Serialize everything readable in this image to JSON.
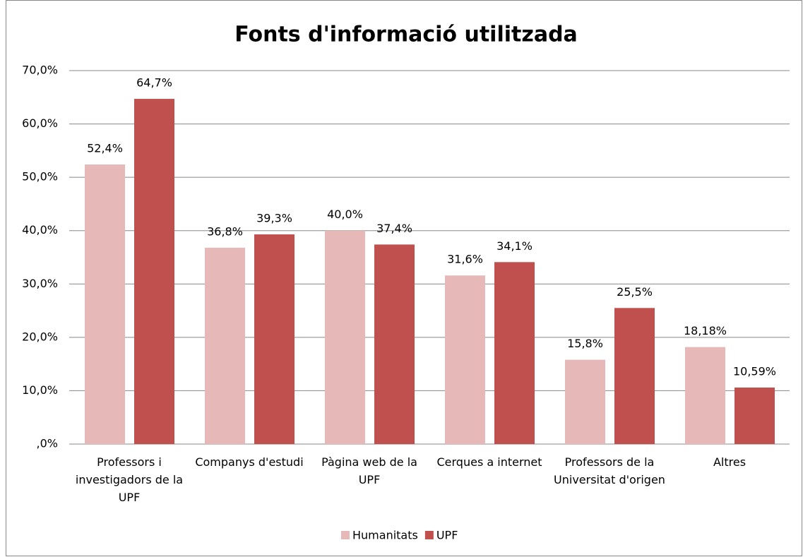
{
  "chart_data": {
    "type": "bar",
    "title": "Fonts d'informació utilitzada",
    "categories": [
      "Professors i investigadors de la UPF",
      "Companys d'estudi",
      "Pàgina web de la UPF",
      "Cerques a internet",
      "Professors de la Universitat d'origen",
      "Altres"
    ],
    "series": [
      {
        "name": "Humanitats",
        "color": "#e6b9b8",
        "values": [
          52.4,
          36.8,
          40.0,
          31.6,
          15.8,
          18.18
        ],
        "value_labels": [
          "52,4%",
          "36,8%",
          "40,0%",
          "31,6%",
          "15,8%",
          "18,18%"
        ]
      },
      {
        "name": "UPF",
        "color": "#c0504d",
        "values": [
          64.7,
          39.3,
          37.4,
          34.1,
          25.5,
          10.59
        ],
        "value_labels": [
          "64,7%",
          "39,3%",
          "37,4%",
          "34,1%",
          "25,5%",
          "10,59%"
        ]
      }
    ],
    "ylim": [
      0,
      70
    ],
    "yticks": [
      {
        "value": 0,
        "label": ",0%"
      },
      {
        "value": 10,
        "label": "10,0%"
      },
      {
        "value": 20,
        "label": "20,0%"
      },
      {
        "value": 30,
        "label": "30,0%"
      },
      {
        "value": 40,
        "label": "40,0%"
      },
      {
        "value": 50,
        "label": "50,0%"
      },
      {
        "value": 60,
        "label": "60,0%"
      },
      {
        "value": 70,
        "label": "70,0%"
      }
    ],
    "grid": true,
    "legend": "bottom"
  }
}
